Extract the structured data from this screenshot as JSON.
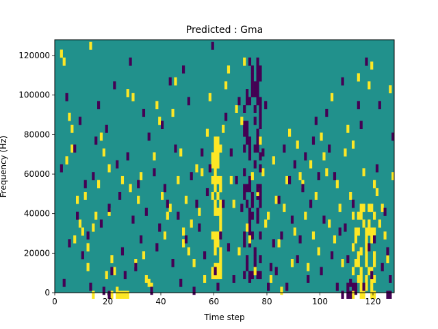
{
  "chart_data": {
    "type": "heatmap",
    "title": "Predicted : Gma",
    "xlabel": "Time step",
    "ylabel": "Frequency (Hz)",
    "xlim": [
      0,
      128
    ],
    "ylim": [
      0,
      128000
    ],
    "xticks": [
      0,
      20,
      40,
      60,
      80,
      100,
      120
    ],
    "yticks": [
      0,
      20000,
      40000,
      60000,
      80000,
      100000,
      120000
    ],
    "ytick_labels": [
      "0",
      "20000",
      "40000",
      "60000",
      "80000",
      "100000",
      "120000"
    ],
    "grid_size": [
      128,
      128
    ],
    "value_levels": [
      -1,
      0,
      1
    ],
    "background_value": 0,
    "colors": {
      "low": "#440154",
      "mid": "#21918c",
      "high": "#fde725"
    },
    "grid": false,
    "legend": "none",
    "cells": {
      "high": [
        [
          2,
          122
        ],
        [
          3,
          118
        ],
        [
          4,
          68
        ],
        [
          5,
          90
        ],
        [
          6,
          84
        ],
        [
          6,
          74
        ],
        [
          7,
          28
        ],
        [
          8,
          48
        ],
        [
          9,
          36
        ],
        [
          10,
          32
        ],
        [
          11,
          50
        ],
        [
          12,
          24
        ],
        [
          12,
          14
        ],
        [
          13,
          126
        ],
        [
          14,
          34
        ],
        [
          15,
          40
        ],
        [
          16,
          56
        ],
        [
          17,
          80
        ],
        [
          18,
          72
        ],
        [
          19,
          10
        ],
        [
          20,
          64
        ],
        [
          20,
          42
        ],
        [
          21,
          18
        ],
        [
          22,
          12
        ],
        [
          23,
          2
        ],
        [
          25,
          58
        ],
        [
          27,
          102
        ],
        [
          28,
          54
        ],
        [
          29,
          100
        ],
        [
          30,
          16
        ],
        [
          31,
          48
        ],
        [
          32,
          60
        ],
        [
          33,
          20
        ],
        [
          34,
          8
        ],
        [
          35,
          6
        ],
        [
          36,
          4
        ],
        [
          37,
          70
        ],
        [
          38,
          96
        ],
        [
          39,
          88
        ],
        [
          40,
          50
        ],
        [
          41,
          30
        ],
        [
          42,
          40
        ],
        [
          43,
          44
        ],
        [
          44,
          92
        ],
        [
          45,
          108
        ],
        [
          46,
          58
        ],
        [
          47,
          72
        ],
        [
          48,
          32
        ],
        [
          48,
          26
        ],
        [
          49,
          48
        ],
        [
          50,
          22
        ],
        [
          51,
          36
        ],
        [
          52,
          16
        ],
        [
          53,
          64
        ],
        [
          54,
          42
        ],
        [
          55,
          62
        ],
        [
          56,
          8
        ],
        [
          57,
          82
        ],
        [
          58,
          100
        ],
        [
          59,
          12
        ],
        [
          60,
          74
        ],
        [
          61,
          66
        ],
        [
          62,
          54
        ],
        [
          63,
          84
        ],
        [
          64,
          106
        ],
        [
          65,
          114
        ],
        [
          66,
          58
        ],
        [
          67,
          46
        ],
        [
          68,
          94
        ],
        [
          69,
          22
        ],
        [
          70,
          88
        ],
        [
          71,
          118
        ],
        [
          72,
          34
        ],
        [
          73,
          28
        ],
        [
          74,
          60
        ],
        [
          75,
          12
        ],
        [
          76,
          52
        ],
        [
          77,
          78
        ],
        [
          78,
          62
        ],
        [
          79,
          36
        ],
        [
          80,
          40
        ],
        [
          81,
          8
        ],
        [
          82,
          68
        ],
        [
          83,
          48
        ],
        [
          84,
          26
        ],
        [
          85,
          2
        ],
        [
          86,
          44
        ],
        [
          87,
          58
        ],
        [
          88,
          82
        ],
        [
          89,
          16
        ],
        [
          90,
          32
        ],
        [
          91,
          76
        ],
        [
          92,
          60
        ],
        [
          93,
          56
        ],
        [
          94,
          40
        ],
        [
          95,
          14
        ],
        [
          96,
          66
        ],
        [
          97,
          30
        ],
        [
          98,
          50
        ],
        [
          99,
          22
        ],
        [
          100,
          80
        ],
        [
          101,
          70
        ],
        [
          102,
          62
        ],
        [
          103,
          36
        ],
        [
          104,
          100
        ],
        [
          105,
          28
        ],
        [
          106,
          56
        ],
        [
          107,
          44
        ],
        [
          108,
          16
        ],
        [
          109,
          72
        ],
        [
          110,
          84
        ],
        [
          111,
          50
        ],
        [
          112,
          76
        ],
        [
          113,
          28
        ],
        [
          114,
          110
        ],
        [
          115,
          22
        ],
        [
          116,
          62
        ],
        [
          117,
          26
        ],
        [
          118,
          106
        ],
        [
          119,
          116
        ],
        [
          120,
          56
        ],
        [
          121,
          52
        ],
        [
          122,
          36
        ],
        [
          123,
          44
        ],
        [
          124,
          30
        ],
        [
          125,
          18
        ],
        [
          126,
          104
        ],
        [
          127,
          60
        ]
      ],
      "low": [
        [
          2,
          64
        ],
        [
          3,
          6
        ],
        [
          4,
          100
        ],
        [
          5,
          26
        ],
        [
          7,
          74
        ],
        [
          8,
          40
        ],
        [
          9,
          88
        ],
        [
          10,
          20
        ],
        [
          11,
          56
        ],
        [
          12,
          30
        ],
        [
          13,
          4
        ],
        [
          14,
          60
        ],
        [
          15,
          78
        ],
        [
          16,
          96
        ],
        [
          17,
          36
        ],
        [
          18,
          2
        ],
        [
          19,
          84
        ],
        [
          20,
          44
        ],
        [
          21,
          12
        ],
        [
          22,
          106
        ],
        [
          23,
          66
        ],
        [
          24,
          50
        ],
        [
          25,
          22
        ],
        [
          26,
          10
        ],
        [
          27,
          70
        ],
        [
          28,
          118
        ],
        [
          29,
          38
        ],
        [
          30,
          14
        ],
        [
          31,
          56
        ],
        [
          32,
          28
        ],
        [
          33,
          92
        ],
        [
          34,
          42
        ],
        [
          35,
          80
        ],
        [
          36,
          2
        ],
        [
          37,
          62
        ],
        [
          38,
          24
        ],
        [
          39,
          34
        ],
        [
          40,
          86
        ],
        [
          41,
          54
        ],
        [
          42,
          46
        ],
        [
          43,
          108
        ],
        [
          44,
          16
        ],
        [
          45,
          74
        ],
        [
          46,
          40
        ],
        [
          47,
          6
        ],
        [
          48,
          114
        ],
        [
          49,
          28
        ],
        [
          50,
          98
        ],
        [
          51,
          60
        ],
        [
          52,
          2
        ],
        [
          53,
          46
        ],
        [
          54,
          34
        ],
        [
          55,
          72
        ],
        [
          56,
          20
        ],
        [
          57,
          52
        ],
        [
          58,
          64
        ],
        [
          59,
          126
        ],
        [
          60,
          12
        ],
        [
          61,
          4
        ],
        [
          62,
          30
        ],
        [
          63,
          46
        ],
        [
          64,
          90
        ],
        [
          65,
          24
        ],
        [
          66,
          72
        ],
        [
          67,
          8
        ],
        [
          68,
          58
        ],
        [
          69,
          98
        ],
        [
          70,
          44
        ],
        [
          71,
          30
        ],
        [
          72,
          18
        ],
        [
          73,
          8
        ],
        [
          74,
          40
        ],
        [
          75,
          88
        ],
        [
          76,
          54
        ],
        [
          77,
          64
        ],
        [
          78,
          72
        ],
        [
          79,
          96
        ],
        [
          80,
          4
        ],
        [
          81,
          14
        ],
        [
          82,
          26
        ],
        [
          83,
          12
        ],
        [
          84,
          48
        ],
        [
          85,
          30
        ],
        [
          86,
          74
        ],
        [
          87,
          4
        ],
        [
          88,
          58
        ],
        [
          89,
          38
        ],
        [
          90,
          66
        ],
        [
          91,
          18
        ],
        [
          92,
          28
        ],
        [
          93,
          54
        ],
        [
          94,
          70
        ],
        [
          95,
          8
        ],
        [
          96,
          46
        ],
        [
          97,
          78
        ],
        [
          98,
          88
        ],
        [
          99,
          60
        ],
        [
          100,
          12
        ],
        [
          101,
          38
        ],
        [
          102,
          92
        ],
        [
          103,
          74
        ],
        [
          104,
          20
        ],
        [
          105,
          60
        ],
        [
          106,
          4
        ],
        [
          107,
          32
        ],
        [
          108,
          108
        ],
        [
          109,
          34
        ],
        [
          110,
          18
        ],
        [
          111,
          6
        ],
        [
          112,
          46
        ],
        [
          113,
          2
        ],
        [
          114,
          96
        ],
        [
          115,
          86
        ],
        [
          116,
          4
        ],
        [
          117,
          118
        ],
        [
          118,
          24
        ],
        [
          119,
          10
        ],
        [
          120,
          28
        ],
        [
          121,
          64
        ],
        [
          122,
          96
        ],
        [
          123,
          14
        ],
        [
          124,
          42
        ],
        [
          125,
          22
        ],
        [
          126,
          8
        ],
        [
          127,
          80
        ]
      ],
      "high_clusters": [
        {
          "x": [
            59,
            63
          ],
          "y": [
            6,
            82
          ],
          "density": 0.55
        },
        {
          "x": [
            112,
            121
          ],
          "y": [
            0,
            46
          ],
          "density": 0.45
        },
        {
          "x": [
            14,
            31
          ],
          "y": [
            0,
            4
          ],
          "density": 0.5
        }
      ],
      "low_clusters": [
        {
          "x": [
            71,
            78
          ],
          "y": [
            10,
            120
          ],
          "density": 0.4
        },
        {
          "x": [
            108,
            114
          ],
          "y": [
            0,
            8
          ],
          "density": 0.45
        },
        {
          "x": [
            125,
            128
          ],
          "y": [
            0,
            4
          ],
          "density": 0.5
        },
        {
          "x": [
            15,
            21
          ],
          "y": [
            0,
            4
          ],
          "density": 0.45
        }
      ]
    }
  }
}
